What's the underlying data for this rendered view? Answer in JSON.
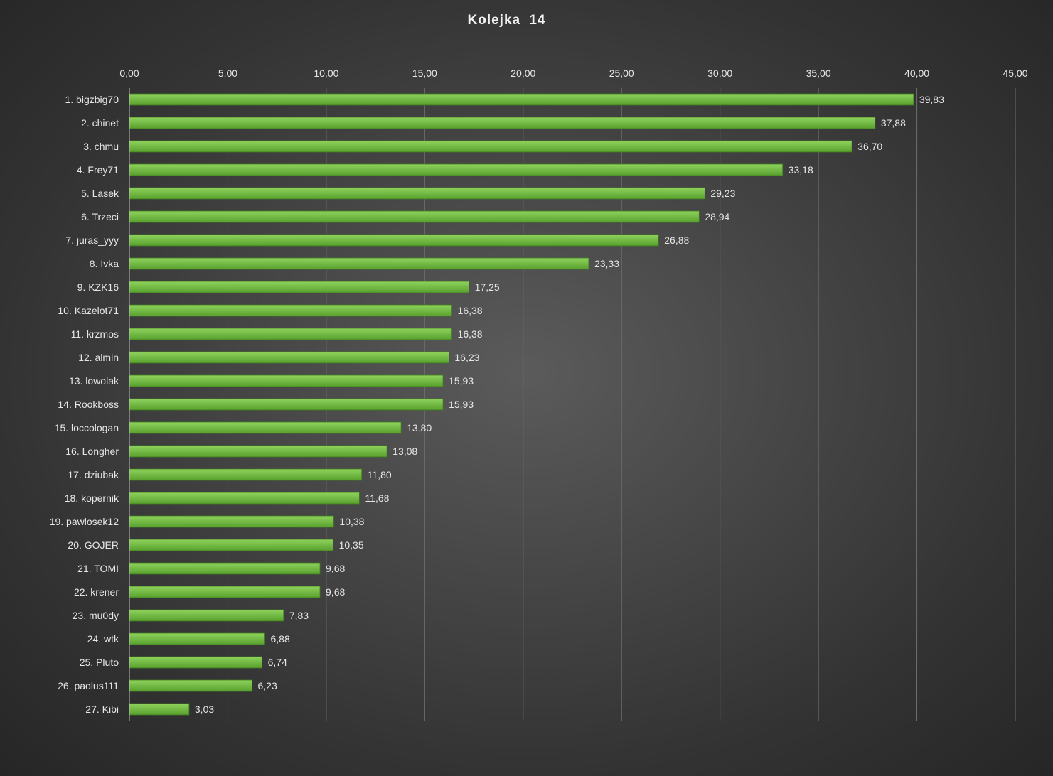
{
  "chart_data": {
    "type": "bar",
    "orientation": "horizontal",
    "title": "Kolejka  14",
    "xlim": [
      0,
      45
    ],
    "x_ticks": [
      "0,00",
      "5,00",
      "10,00",
      "15,00",
      "20,00",
      "25,00",
      "30,00",
      "35,00",
      "40,00",
      "45,00"
    ],
    "grid": true,
    "categories": [
      "1. bigzbig70",
      "2. chinet",
      "3. chmu",
      "4. Frey71",
      "5. Lasek",
      "6. Trzeci",
      "7. juras_yyy",
      "8. Ivka",
      "9. KZK16",
      "10. Kazelot71",
      "11. krzmos",
      "12. almin",
      "13. lowolak",
      "14. Rookboss",
      "15. loccologan",
      "16. Longher",
      "17. dziubak",
      "18. kopernik",
      "19. pawlosek12",
      "20. GOJER",
      "21. TOMI",
      "22. krener",
      "23. mu0dy",
      "24. wtk",
      "25. Pluto",
      "26. paolus111",
      "27. Kibi"
    ],
    "values": [
      39.83,
      37.88,
      36.7,
      33.18,
      29.23,
      28.94,
      26.88,
      23.33,
      17.25,
      16.38,
      16.38,
      16.23,
      15.93,
      15.93,
      13.8,
      13.08,
      11.8,
      11.68,
      10.38,
      10.35,
      9.68,
      9.68,
      7.83,
      6.88,
      6.74,
      6.23,
      3.03
    ],
    "value_labels": [
      "39,83",
      "37,88",
      "36,70",
      "33,18",
      "29,23",
      "28,94",
      "26,88",
      "23,33",
      "17,25",
      "16,38",
      "16,38",
      "16,23",
      "15,93",
      "15,93",
      "13,80",
      "13,08",
      "11,80",
      "11,68",
      "10,38",
      "10,35",
      "9,68",
      "9,68",
      "7,83",
      "6,88",
      "6,74",
      "6,23",
      "3,03"
    ],
    "colors": {
      "bar_top": "#8fd35c",
      "bar_bottom": "#58a02e",
      "bar_edge": "#3f7a1f",
      "grid": "#6e6e6e",
      "axis": "#bdbdbd",
      "text": "#e6e6e6",
      "background": "#3d3d3d"
    }
  }
}
